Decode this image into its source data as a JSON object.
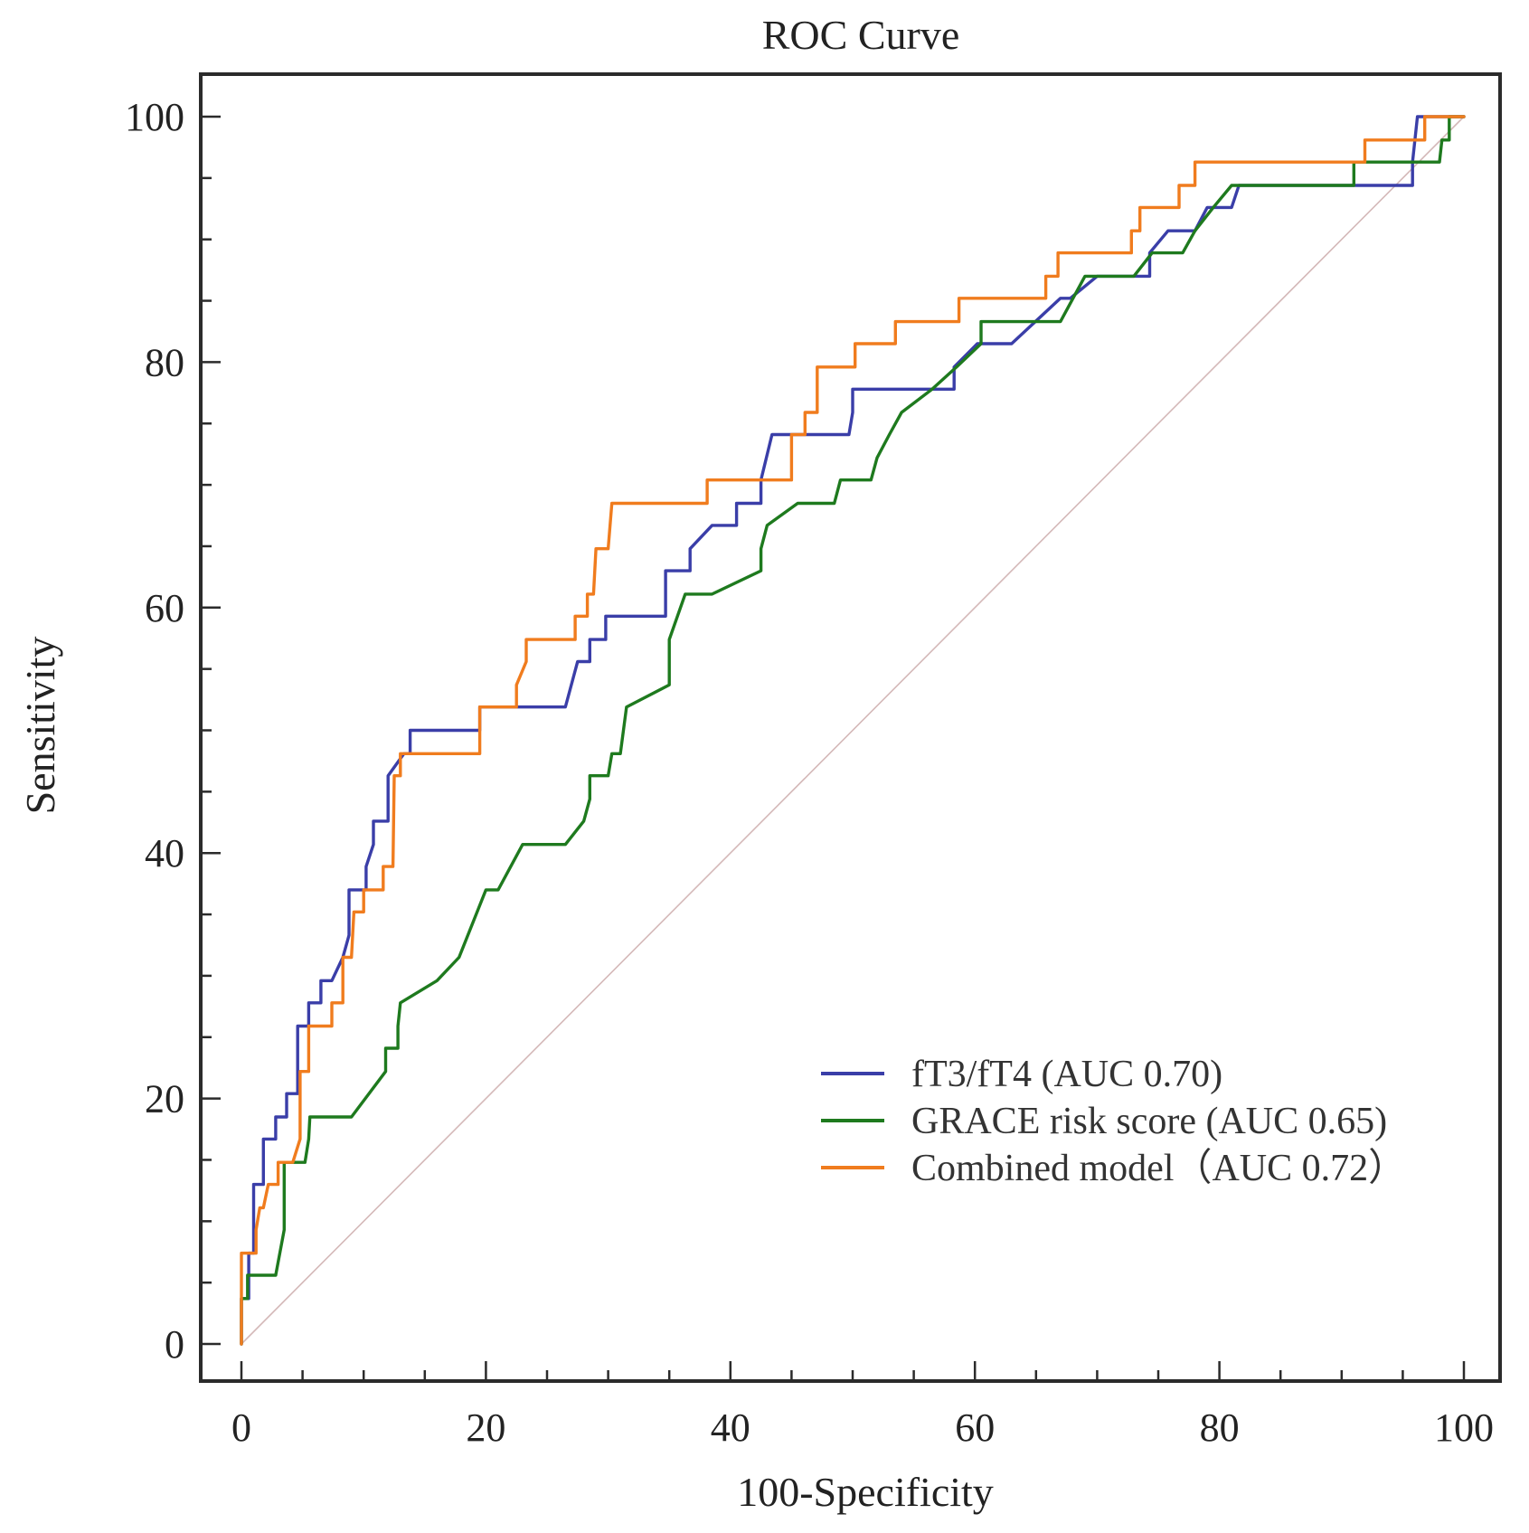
{
  "chart_data": {
    "type": "line",
    "title": "ROC Curve",
    "xlabel": "100-Specificity",
    "ylabel": "Sensitivity",
    "xlim": [
      0,
      100
    ],
    "ylim": [
      0,
      100
    ],
    "x_ticks": [
      0,
      20,
      40,
      60,
      80,
      100
    ],
    "y_ticks": [
      0,
      20,
      40,
      60,
      80,
      100
    ],
    "x_minor_step": 5,
    "y_minor_step": 5,
    "grid": false,
    "legend_position": "bottom-right",
    "reference_line": {
      "name": "chance",
      "x": [
        0,
        100
      ],
      "y": [
        0,
        100
      ],
      "color": "#d4b8b8"
    },
    "series": [
      {
        "name": "fT3/fT4 (AUC 0.70)",
        "color": "#3a3ea8",
        "points": [
          [
            0,
            0
          ],
          [
            0,
            3.7
          ],
          [
            0.6,
            3.7
          ],
          [
            0.6,
            7.4
          ],
          [
            1,
            7.4
          ],
          [
            1,
            13
          ],
          [
            1.8,
            13
          ],
          [
            1.8,
            16.7
          ],
          [
            2.8,
            16.7
          ],
          [
            2.8,
            18.5
          ],
          [
            3.7,
            18.5
          ],
          [
            3.7,
            20.4
          ],
          [
            4.6,
            20.4
          ],
          [
            4.6,
            24
          ],
          [
            4.6,
            25.9
          ],
          [
            5.5,
            25.9
          ],
          [
            5.5,
            27.8
          ],
          [
            6.5,
            27.8
          ],
          [
            6.5,
            29.6
          ],
          [
            7.4,
            29.6
          ],
          [
            8.3,
            31.5
          ],
          [
            8.8,
            33.3
          ],
          [
            8.8,
            37
          ],
          [
            10.2,
            37
          ],
          [
            10.2,
            38.9
          ],
          [
            10.8,
            40.7
          ],
          [
            10.8,
            42.6
          ],
          [
            12,
            42.6
          ],
          [
            12,
            46.3
          ],
          [
            13.3,
            48.1
          ],
          [
            13.8,
            48.1
          ],
          [
            13.8,
            50
          ],
          [
            19.5,
            50
          ],
          [
            19.5,
            51.9
          ],
          [
            26.5,
            51.9
          ],
          [
            27.5,
            55.6
          ],
          [
            28.5,
            55.6
          ],
          [
            28.5,
            57.4
          ],
          [
            29.8,
            57.4
          ],
          [
            29.8,
            59.3
          ],
          [
            32.8,
            59.3
          ],
          [
            34.7,
            59.3
          ],
          [
            34.7,
            63
          ],
          [
            36.7,
            63
          ],
          [
            36.7,
            64.8
          ],
          [
            38.5,
            66.7
          ],
          [
            40.5,
            66.7
          ],
          [
            40.5,
            68.5
          ],
          [
            42.5,
            68.5
          ],
          [
            42.5,
            70.4
          ],
          [
            43.4,
            74.1
          ],
          [
            46.8,
            74.1
          ],
          [
            49.7,
            74.1
          ],
          [
            50,
            75.9
          ],
          [
            50,
            77.8
          ],
          [
            58.3,
            77.8
          ],
          [
            58.3,
            79.6
          ],
          [
            60.2,
            81.5
          ],
          [
            63,
            81.5
          ],
          [
            67,
            85.2
          ],
          [
            67.8,
            85.2
          ],
          [
            70,
            87
          ],
          [
            74.3,
            87
          ],
          [
            74.3,
            88.9
          ],
          [
            75.8,
            90.7
          ],
          [
            78,
            90.7
          ],
          [
            79,
            92.6
          ],
          [
            81,
            92.6
          ],
          [
            81.6,
            94.4
          ],
          [
            95.8,
            94.4
          ],
          [
            95.8,
            96.3
          ],
          [
            96.2,
            100
          ],
          [
            100,
            100
          ]
        ]
      },
      {
        "name": "GRACE risk score (AUC 0.65)",
        "color": "#1e7a1e",
        "points": [
          [
            0,
            0
          ],
          [
            0,
            3.7
          ],
          [
            0.5,
            3.7
          ],
          [
            0.5,
            5.6
          ],
          [
            2.8,
            5.6
          ],
          [
            3.5,
            9.3
          ],
          [
            3.5,
            14.8
          ],
          [
            5.2,
            14.8
          ],
          [
            5.5,
            16.7
          ],
          [
            5.6,
            18.5
          ],
          [
            9,
            18.5
          ],
          [
            11.8,
            22.2
          ],
          [
            11.8,
            24.1
          ],
          [
            12.8,
            24.1
          ],
          [
            12.8,
            25.9
          ],
          [
            13,
            27.8
          ],
          [
            16,
            29.6
          ],
          [
            17.8,
            31.5
          ],
          [
            20,
            37
          ],
          [
            21,
            37
          ],
          [
            23,
            40.7
          ],
          [
            26.5,
            40.7
          ],
          [
            28,
            42.6
          ],
          [
            28.5,
            44.4
          ],
          [
            28.5,
            46.3
          ],
          [
            30,
            46.3
          ],
          [
            30.3,
            48.1
          ],
          [
            31,
            48.1
          ],
          [
            31.5,
            51.9
          ],
          [
            35,
            53.7
          ],
          [
            35,
            57.4
          ],
          [
            36.3,
            61.1
          ],
          [
            38.5,
            61.1
          ],
          [
            42.5,
            63
          ],
          [
            42.5,
            64.8
          ],
          [
            43,
            66.7
          ],
          [
            45.5,
            68.5
          ],
          [
            48.5,
            68.5
          ],
          [
            49,
            70.4
          ],
          [
            51.5,
            70.4
          ],
          [
            52,
            72.2
          ],
          [
            53,
            74.1
          ],
          [
            54,
            75.9
          ],
          [
            56.5,
            77.8
          ],
          [
            58.5,
            79.6
          ],
          [
            60.5,
            81.5
          ],
          [
            60.5,
            83.3
          ],
          [
            67,
            83.3
          ],
          [
            69,
            87
          ],
          [
            73,
            87
          ],
          [
            74.5,
            88.9
          ],
          [
            77,
            88.9
          ],
          [
            78,
            90.7
          ],
          [
            79.5,
            92.6
          ],
          [
            81,
            94.4
          ],
          [
            91,
            94.4
          ],
          [
            91,
            96.3
          ],
          [
            98,
            96.3
          ],
          [
            98.2,
            98.1
          ],
          [
            98.8,
            98.1
          ],
          [
            98.8,
            100
          ],
          [
            100,
            100
          ]
        ]
      },
      {
        "name": "Combined  model（AUC 0.72）",
        "color": "#f07c1e",
        "points": [
          [
            0,
            0
          ],
          [
            0,
            7.4
          ],
          [
            1.2,
            7.4
          ],
          [
            1.2,
            9.3
          ],
          [
            1.5,
            11.1
          ],
          [
            1.8,
            11.1
          ],
          [
            2.2,
            13
          ],
          [
            3,
            13
          ],
          [
            3,
            14.8
          ],
          [
            4.2,
            14.8
          ],
          [
            4.8,
            16.7
          ],
          [
            4.8,
            22.2
          ],
          [
            5.5,
            22.2
          ],
          [
            5.5,
            25.9
          ],
          [
            7.4,
            25.9
          ],
          [
            7.4,
            27.8
          ],
          [
            8.3,
            27.8
          ],
          [
            8.3,
            31.5
          ],
          [
            9,
            31.5
          ],
          [
            9.2,
            35.2
          ],
          [
            10,
            35.2
          ],
          [
            10,
            37
          ],
          [
            11.6,
            37
          ],
          [
            11.6,
            38.9
          ],
          [
            12.4,
            38.9
          ],
          [
            12.5,
            46.3
          ],
          [
            13,
            46.3
          ],
          [
            13,
            48.1
          ],
          [
            19.5,
            48.1
          ],
          [
            19.5,
            51.9
          ],
          [
            22.5,
            51.9
          ],
          [
            22.5,
            53.7
          ],
          [
            23.3,
            55.6
          ],
          [
            23.3,
            57.4
          ],
          [
            27.3,
            57.4
          ],
          [
            27.3,
            59.3
          ],
          [
            28.3,
            59.3
          ],
          [
            28.3,
            61.1
          ],
          [
            28.8,
            61.1
          ],
          [
            29,
            64.8
          ],
          [
            30,
            64.8
          ],
          [
            30.3,
            68.5
          ],
          [
            38.1,
            68.5
          ],
          [
            38.1,
            70.4
          ],
          [
            45,
            70.4
          ],
          [
            45,
            74.1
          ],
          [
            46.1,
            74.1
          ],
          [
            46.1,
            75.9
          ],
          [
            47.1,
            75.9
          ],
          [
            47.1,
            79.6
          ],
          [
            50.2,
            79.6
          ],
          [
            50.2,
            81.5
          ],
          [
            53.5,
            81.5
          ],
          [
            53.5,
            83.3
          ],
          [
            58.7,
            83.3
          ],
          [
            58.7,
            85.2
          ],
          [
            65.8,
            85.2
          ],
          [
            65.8,
            87
          ],
          [
            66.8,
            87
          ],
          [
            66.8,
            88.9
          ],
          [
            72.8,
            88.9
          ],
          [
            72.8,
            90.7
          ],
          [
            73.5,
            90.7
          ],
          [
            73.5,
            92.6
          ],
          [
            76.7,
            92.6
          ],
          [
            76.7,
            94.4
          ],
          [
            78,
            94.4
          ],
          [
            78,
            96.3
          ],
          [
            91.9,
            96.3
          ],
          [
            91.9,
            98.1
          ],
          [
            96.8,
            98.1
          ],
          [
            96.8,
            100
          ],
          [
            100,
            100
          ]
        ]
      }
    ]
  }
}
